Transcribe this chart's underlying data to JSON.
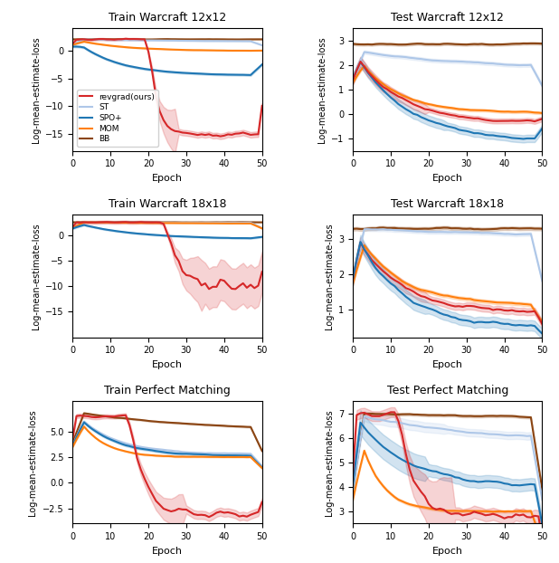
{
  "titles": [
    "Train Warcraft 12x12",
    "Test Warcraft 12x12",
    "Train Warcraft 18x18",
    "Test Warcraft 18x18",
    "Train Perfect Matching",
    "Test Perfect Matching"
  ],
  "ylabel": "Log-mean-estimate-loss",
  "xlabel": "Epoch",
  "colors": {
    "revgrad": "#d62728",
    "ST": "#aec7e8",
    "SPO+": "#1f77b4",
    "MOM": "#ff7f0e",
    "BB": "#8b4513"
  },
  "legend_labels": [
    "revgrad(ours)",
    "ST",
    "SPO+",
    "MOM",
    "BB"
  ]
}
